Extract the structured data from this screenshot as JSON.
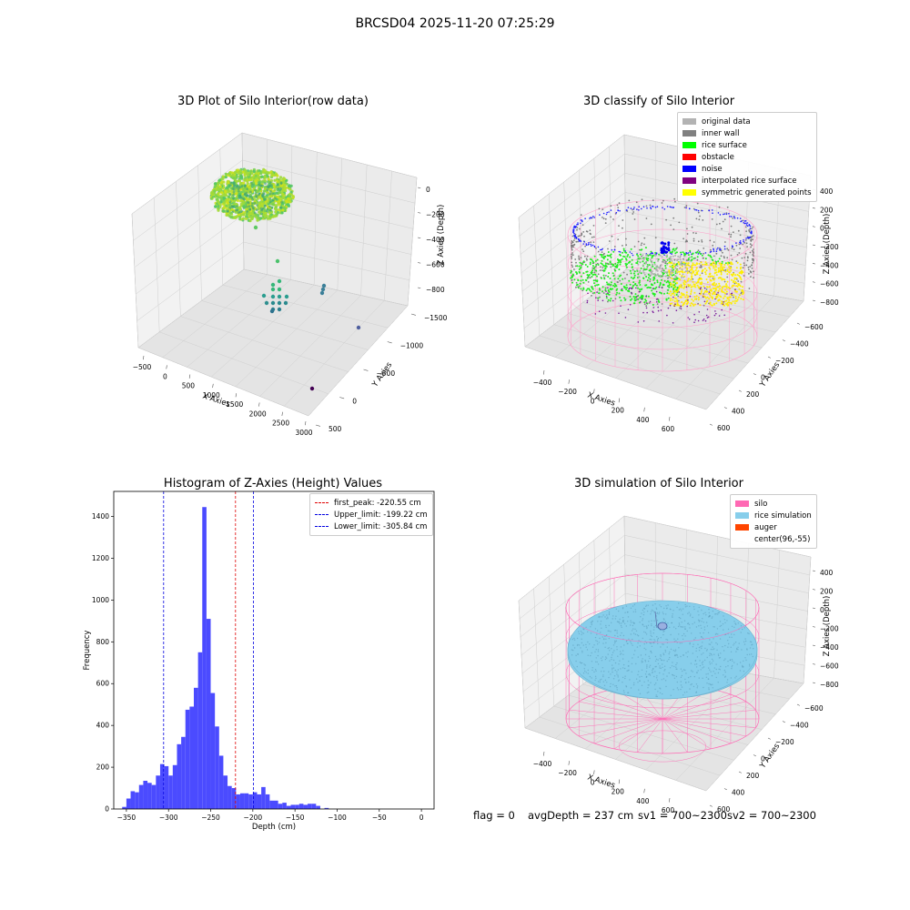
{
  "suptitle": "BRCSD04 2025-11-20 07:25:29",
  "footer": {
    "flag": "flag = 0",
    "avg": "avgDepth = 237 cm",
    "sv1": "sv1 = 700~2300",
    "sv2": "sv2 = 700~2300"
  },
  "colors": {
    "histogram_bar": "#4b4bff",
    "peak_line": "#e00000",
    "limit_line": "#0000e0",
    "silo": "#ff69b4",
    "rice_simulation": "#87ceeb",
    "auger": "#ff4500"
  },
  "chart_data": [
    {
      "type": "scatter",
      "title": "3D Plot of Silo Interior(row data)",
      "xlabel": "X Axies",
      "ylabel": "Y Axies",
      "zlabel": "Z Axies (Depth)",
      "x_ticks": [
        "−500",
        "0",
        "500",
        "1000",
        "1500",
        "2000",
        "2500",
        "3000"
      ],
      "y_ticks": [
        "500",
        "0",
        "−500",
        "−1000",
        "−1500"
      ],
      "z_ticks": [
        "0",
        "−200",
        "−400",
        "−600",
        "−800"
      ]
    },
    {
      "type": "scatter",
      "title": "3D classify of Silo Interior",
      "xlabel": "X Axies",
      "ylabel": "Y Axies",
      "zlabel": "Z Axies (Depth)",
      "x_ticks": [
        "−400",
        "−200",
        "0",
        "200",
        "400",
        "600"
      ],
      "y_ticks": [
        "600",
        "400",
        "200",
        "0",
        "−200",
        "−400",
        "−600"
      ],
      "z_ticks": [
        "400",
        "200",
        "0",
        "−200",
        "−400",
        "−600",
        "−800"
      ],
      "legend": [
        {
          "label": "original data",
          "color": "#b3b3b3"
        },
        {
          "label": "inner wall",
          "color": "#808080"
        },
        {
          "label": "rice surface",
          "color": "#00ff00"
        },
        {
          "label": "obstacle",
          "color": "#ff0000"
        },
        {
          "label": "noise",
          "color": "#0000ff"
        },
        {
          "label": "interpolated rice surface",
          "color": "#800080"
        },
        {
          "label": "symmetric generated points",
          "color": "#ffff00"
        }
      ]
    },
    {
      "type": "bar",
      "title": "Histogram of Z-Axies (Height) Values",
      "xlabel": "Depth (cm)",
      "ylabel": "Frequency",
      "xlim": [
        -365,
        15
      ],
      "ylim": [
        0,
        1520
      ],
      "x_ticks": [
        -350,
        -300,
        -250,
        -200,
        -150,
        -100,
        -50,
        0
      ],
      "y_ticks": [
        0,
        200,
        400,
        600,
        800,
        1000,
        1200,
        1400
      ],
      "bin_start": -355,
      "bin_width": 5,
      "values": [
        10,
        50,
        85,
        80,
        115,
        135,
        125,
        115,
        160,
        215,
        205,
        160,
        210,
        310,
        345,
        475,
        490,
        580,
        750,
        1445,
        910,
        555,
        395,
        255,
        160,
        110,
        100,
        70,
        75,
        75,
        70,
        80,
        70,
        105,
        70,
        40,
        40,
        25,
        30,
        15,
        20,
        20,
        25,
        20,
        25,
        25,
        15,
        0,
        5
      ],
      "vlines": [
        {
          "label": "first_peak: -220.55 cm",
          "x": -220.55,
          "kind": "peak"
        },
        {
          "label": "Upper_limit: -199.22 cm",
          "x": -199.22,
          "kind": "limit"
        },
        {
          "label": "Lower_limit: -305.84 cm",
          "x": -305.84,
          "kind": "limit"
        }
      ]
    },
    {
      "type": "scatter",
      "title": "3D simulation of Silo Interior",
      "xlabel": "X Axies",
      "ylabel": "Y Axies",
      "zlabel": "Z Axies (Depth)",
      "x_ticks": [
        "−400",
        "−200",
        "0",
        "200",
        "400",
        "600"
      ],
      "y_ticks": [
        "600",
        "400",
        "200",
        "0",
        "−200",
        "−400",
        "−600"
      ],
      "z_ticks": [
        "400",
        "200",
        "0",
        "−200",
        "−400",
        "−600",
        "−800"
      ],
      "legend": [
        {
          "label": "silo",
          "color": "#ff69b4"
        },
        {
          "label": "rice simulation",
          "color": "#87ceeb"
        },
        {
          "label": "auger",
          "color": "#ff4500"
        },
        {
          "label": "center(96,-55)",
          "color": ""
        }
      ]
    }
  ]
}
